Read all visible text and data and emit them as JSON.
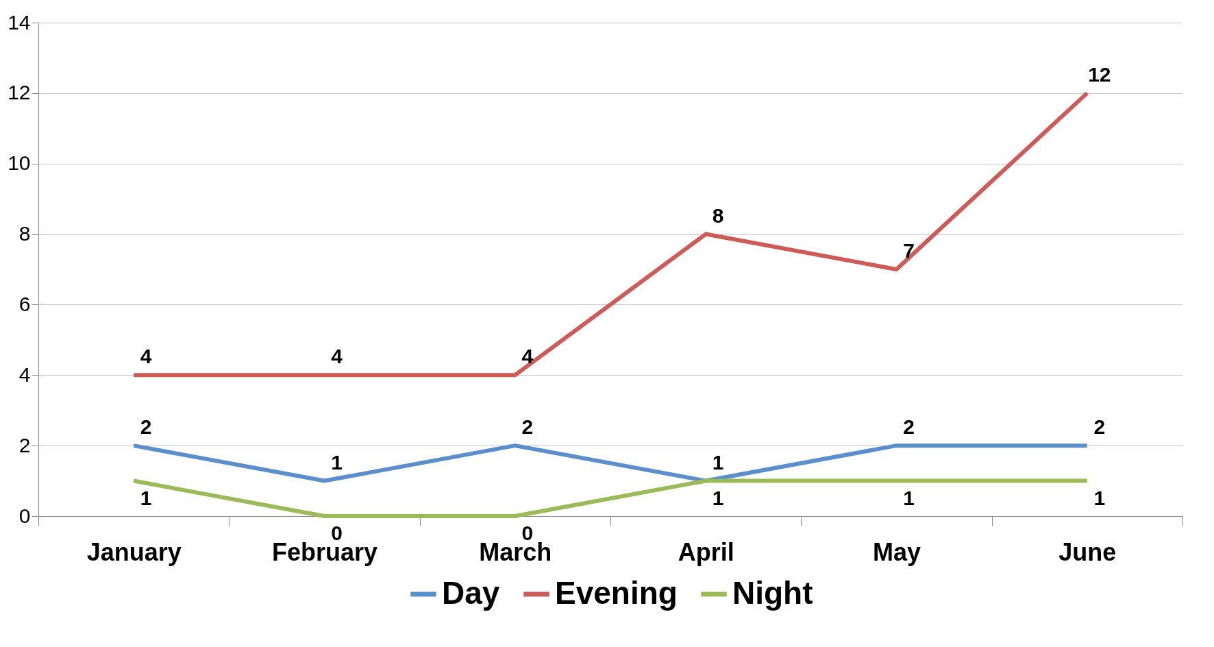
{
  "chart_data": {
    "type": "line",
    "categories": [
      "January",
      "February",
      "March",
      "April",
      "May",
      "June"
    ],
    "series": [
      {
        "name": "Day",
        "color": "#5b8fcb",
        "values": [
          2,
          1,
          2,
          1,
          2,
          2
        ]
      },
      {
        "name": "Evening",
        "color": "#cd5c58",
        "values": [
          4,
          4,
          4,
          8,
          7,
          12
        ]
      },
      {
        "name": "Night",
        "color": "#9bbb59",
        "values": [
          1,
          0,
          0,
          1,
          1,
          1
        ]
      }
    ],
    "ylim": [
      0,
      14
    ],
    "yticks": [
      0,
      2,
      4,
      6,
      8,
      10,
      12,
      14
    ],
    "grid": "y",
    "legend": "bottom",
    "data_labels": true,
    "line_style": "solid"
  }
}
